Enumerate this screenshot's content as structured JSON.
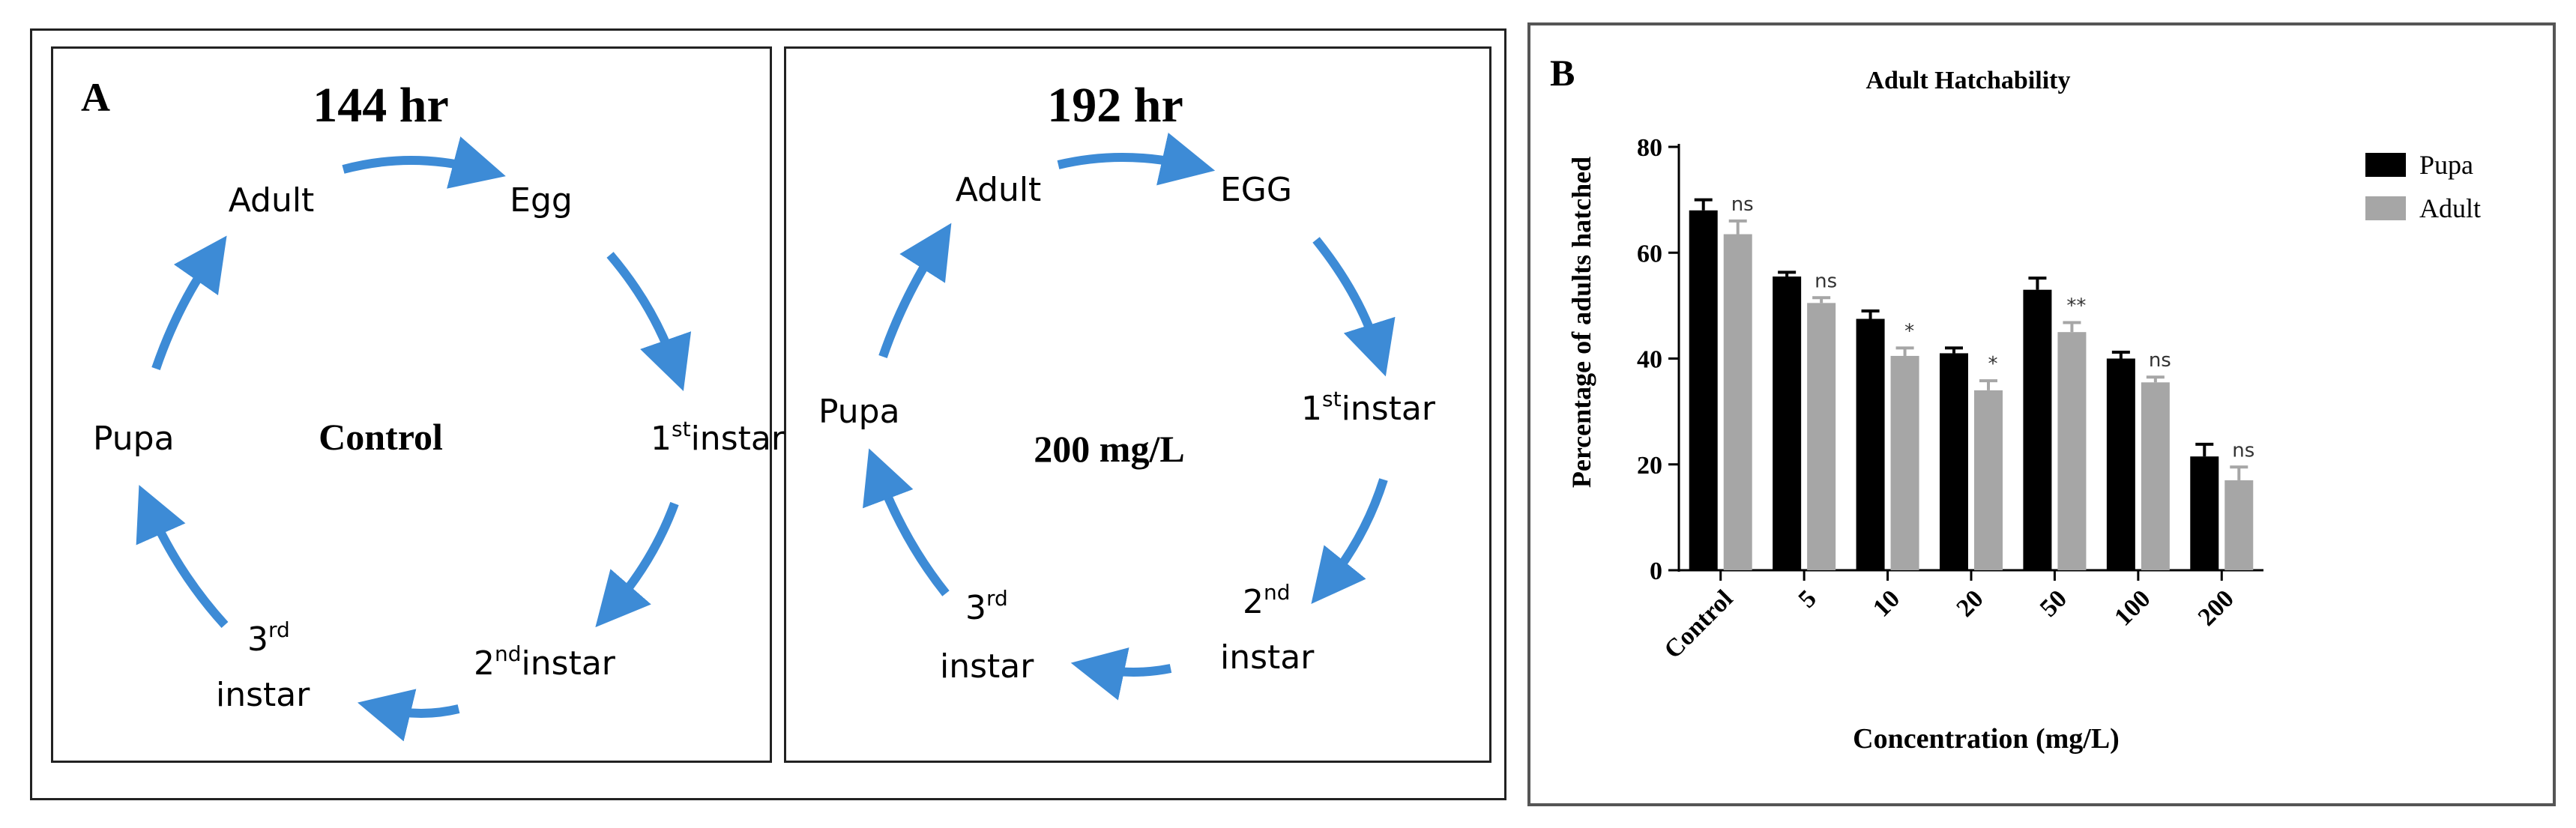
{
  "panel_a": {
    "label": "A",
    "control": {
      "duration": "144 hr",
      "center_label": "Control",
      "stages": {
        "adult": "Adult",
        "egg": "Egg",
        "first_instar_num": "1",
        "first_instar_sup": "st",
        "first_instar_word": "instar",
        "second_instar_num": "2",
        "second_instar_sup": "nd",
        "second_instar_word": "instar",
        "third_instar_num": "3",
        "third_instar_sup": "rd",
        "third_instar_word": "instar",
        "pupa": "Pupa"
      }
    },
    "treatment": {
      "duration": "192 hr",
      "center_label": "200 mg/L",
      "stages": {
        "adult": "Adult",
        "egg": "EGG",
        "first_instar_num": "1",
        "first_instar_sup": "st",
        "first_instar_word": "instar",
        "second_instar_num": "2",
        "second_instar_sup": "nd",
        "second_instar_word": "instar",
        "third_instar_num": "3",
        "third_instar_sup": "rd",
        "third_instar_word": "instar",
        "pupa": "Pupa"
      }
    },
    "arrow_color": "#3d8bd6"
  },
  "panel_b": {
    "label": "B"
  },
  "chart_data": {
    "type": "bar",
    "title": "Adult Hatchability",
    "xlabel": "Concentration (mg/L)",
    "ylabel": "Percentage of adults hatched",
    "categories": [
      "Control",
      "5",
      "10",
      "20",
      "50",
      "100",
      "200"
    ],
    "ylim": [
      0,
      80
    ],
    "yticks": [
      0,
      20,
      40,
      60,
      80
    ],
    "series": [
      {
        "name": "Pupa",
        "color": "#000000",
        "values": [
          68,
          55.5,
          47.5,
          41,
          53,
          40,
          21.5
        ],
        "errors": [
          2,
          0.8,
          1.5,
          1,
          2.2,
          1.2,
          2.3
        ]
      },
      {
        "name": "Adult",
        "color": "#a6a6a6",
        "values": [
          63.5,
          50.5,
          40.5,
          34,
          45,
          35.5,
          17
        ],
        "errors": [
          2.5,
          1,
          1.5,
          1.8,
          1.8,
          1,
          2.5
        ]
      }
    ],
    "significance": [
      "ns",
      "ns",
      "*",
      "*",
      "**",
      "ns",
      "ns"
    ],
    "legend_position": "top-right",
    "grid": false
  }
}
